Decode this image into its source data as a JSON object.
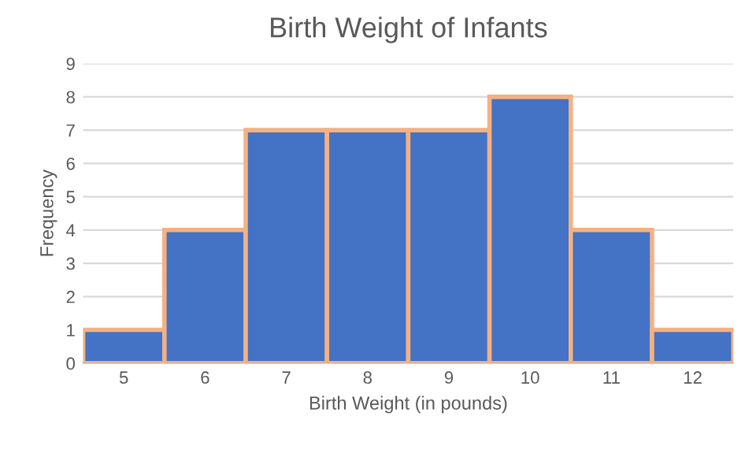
{
  "chart_data": {
    "type": "bar",
    "title": "Birth Weight of Infants",
    "xlabel": "Birth Weight (in pounds)",
    "ylabel": "Frequency",
    "categories": [
      "5",
      "6",
      "7",
      "8",
      "9",
      "10",
      "11",
      "12"
    ],
    "values": [
      1,
      4,
      7,
      7,
      7,
      8,
      4,
      1
    ],
    "color": "#4472c4",
    "ylim": [
      0,
      9
    ],
    "yticks": [
      0,
      1,
      2,
      3,
      4,
      5,
      6,
      7,
      8,
      9
    ],
    "grid": "y"
  }
}
